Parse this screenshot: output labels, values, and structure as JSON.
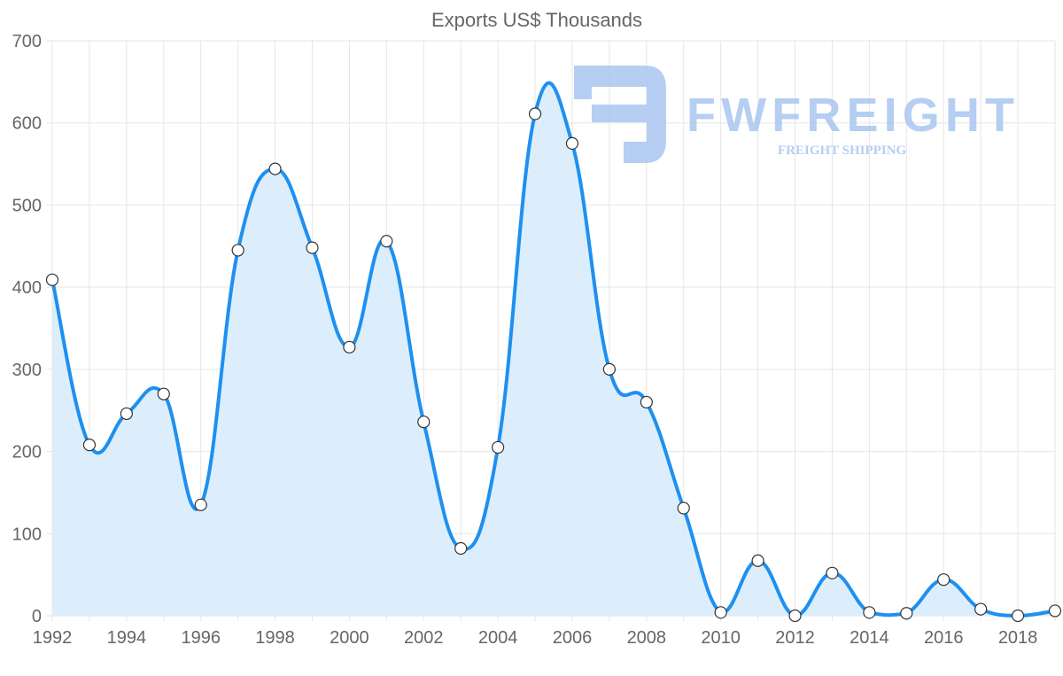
{
  "chart_data": {
    "type": "line",
    "title": "Exports US$ Thousands",
    "xlabel": "",
    "ylabel": "",
    "x": [
      1992,
      1993,
      1994,
      1995,
      1996,
      1997,
      1998,
      1999,
      2000,
      2001,
      2002,
      2003,
      2004,
      2005,
      2006,
      2007,
      2008,
      2009,
      2010,
      2011,
      2012,
      2013,
      2014,
      2015,
      2016,
      2017,
      2018,
      2019
    ],
    "series": [
      {
        "name": "Exports US$ Thousands",
        "values": [
          409,
          208,
          246,
          270,
          135,
          445,
          544,
          448,
          327,
          456,
          236,
          82,
          205,
          611,
          575,
          300,
          260,
          131,
          4,
          67,
          0,
          52,
          4,
          3,
          44,
          8,
          0,
          6
        ]
      }
    ],
    "xticks": [
      "1992",
      "1994",
      "1996",
      "1998",
      "2000",
      "2002",
      "2004",
      "2006",
      "2008",
      "2010",
      "2012",
      "2014",
      "2016",
      "2018"
    ],
    "yticks": [
      "0",
      "100",
      "200",
      "300",
      "400",
      "500",
      "600",
      "700"
    ],
    "ylim": [
      0,
      700
    ],
    "xlim": [
      1992,
      2019
    ],
    "grid": true,
    "legend": "none",
    "colors": {
      "line": "#1e90f0",
      "fill": "#d8ecfc",
      "point_fill": "#ffffff",
      "point_stroke": "#333333",
      "grid": "#e6e6e6",
      "logo": "#a9c6f0"
    }
  },
  "watermark": {
    "brand": "FWFREIGHT",
    "tagline": "FREIGHT SHIPPING"
  }
}
